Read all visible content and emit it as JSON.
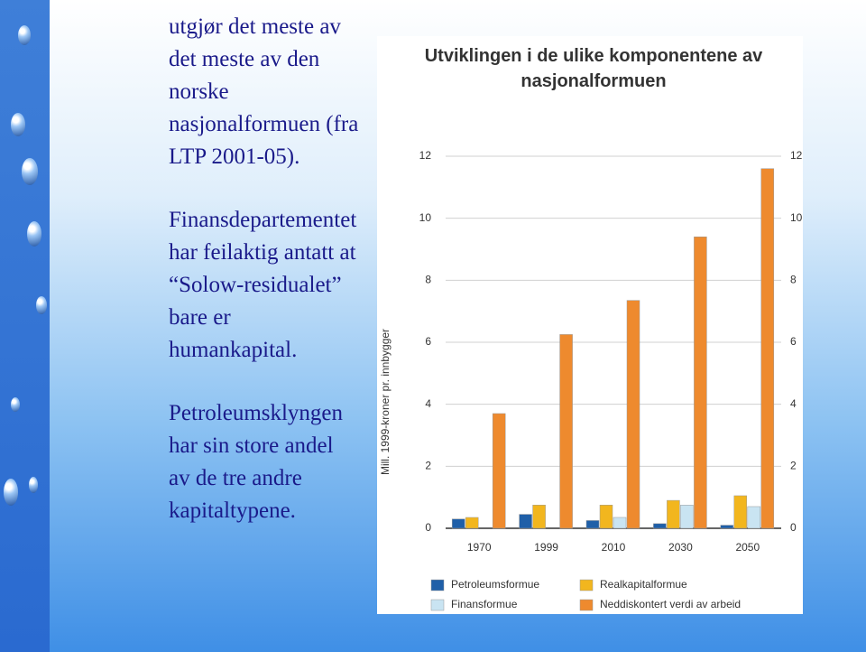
{
  "slide": {
    "paragraphs": [
      "utgjør det meste av det meste av den norske nasjonalformuen (fra LTP 2001-05).",
      "Finansdepartementet har feilaktig antatt at “Solow-residualet” bare er humankapital.",
      "Petroleumsklyngen har sin store andel av de tre andre kapitaltypene."
    ]
  },
  "chart_data": {
    "type": "bar",
    "title": "Utviklingen i de ulike komponentene av nasjonalformuen",
    "y_label": "Mill. 1999-kroner pr. innbygger",
    "categories": [
      "1970",
      "1999",
      "2010",
      "2030",
      "2050"
    ],
    "series": [
      {
        "name": "Petroleumsformue",
        "color": "#1f5fa8",
        "values": [
          0.3,
          0.45,
          0.25,
          0.15,
          0.1
        ]
      },
      {
        "name": "Realkapitalformue",
        "color": "#f2b61e",
        "values": [
          0.35,
          0.75,
          0.75,
          0.9,
          1.05
        ]
      },
      {
        "name": "Finansformue",
        "color": "#c9e4f2",
        "values": [
          0,
          0,
          0.35,
          0.75,
          0.7
        ]
      },
      {
        "name": "Neddiskontert verdi av arbeid",
        "color": "#ee8a2e",
        "values": [
          3.7,
          6.25,
          7.35,
          9.4,
          11.6
        ]
      }
    ],
    "ylim": [
      0,
      12
    ],
    "yticks": [
      0,
      2,
      4,
      6,
      8,
      10,
      12
    ],
    "grid": true
  }
}
